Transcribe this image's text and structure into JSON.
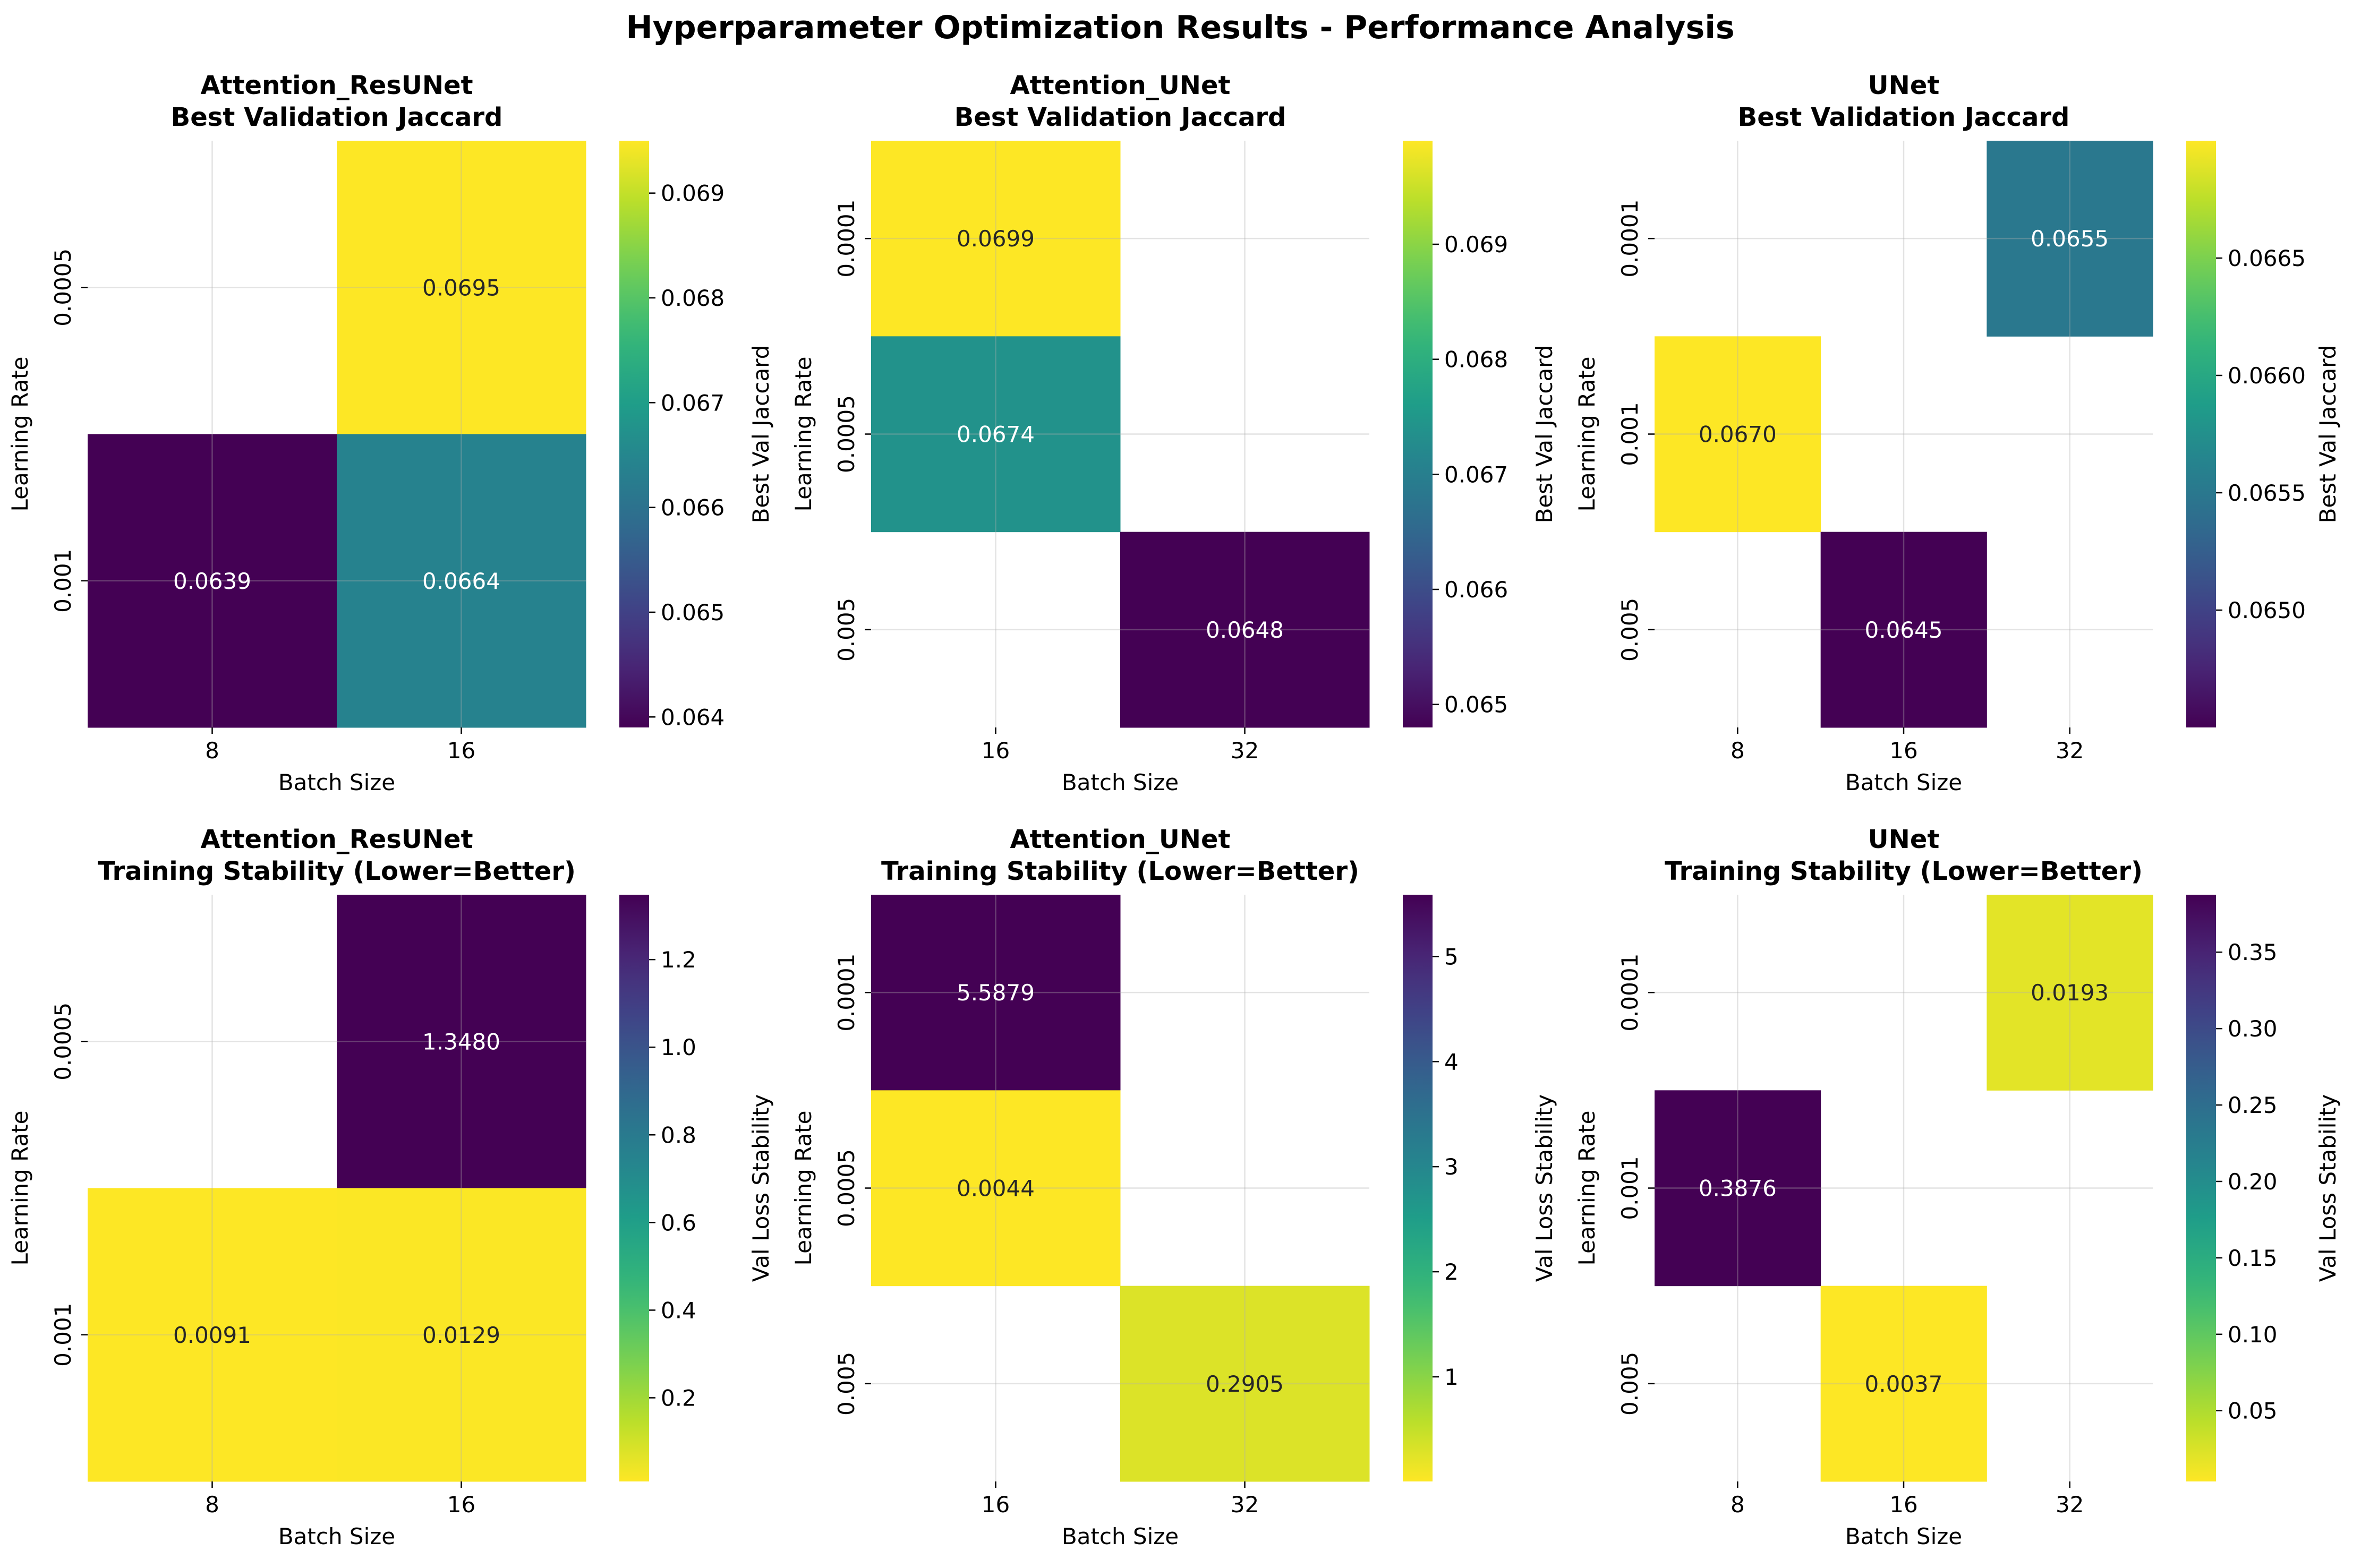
{
  "title": "Hyperparameter Optimization Results - Performance Analysis",
  "chart_data": [
    {
      "type": "heatmap",
      "model": "Attention_ResUNet",
      "subtitle": "Best Validation Jaccard",
      "xlabel": "Batch Size",
      "ylabel": "Learning Rate",
      "x_categories": [
        "8",
        "16"
      ],
      "y_categories": [
        "0.0005",
        "0.001"
      ],
      "cells": [
        [
          null,
          0.0695
        ],
        [
          0.0639,
          0.0664
        ]
      ],
      "cell_labels": [
        [
          null,
          "0.0695"
        ],
        [
          "0.0639",
          "0.0664"
        ]
      ],
      "colormap": "viridis",
      "colorbar_label": "Best Val Jaccard",
      "colorbar_range": [
        0.0639,
        0.0695
      ],
      "colorbar_ticks": [
        "0.064",
        "0.065",
        "0.066",
        "0.067",
        "0.068",
        "0.069"
      ],
      "colorbar_tick_values": [
        0.064,
        0.065,
        0.066,
        0.067,
        0.068,
        0.069
      ],
      "reversed": false,
      "grid": true
    },
    {
      "type": "heatmap",
      "model": "Attention_UNet",
      "subtitle": "Best Validation Jaccard",
      "xlabel": "Batch Size",
      "ylabel": "Learning Rate",
      "x_categories": [
        "16",
        "32"
      ],
      "y_categories": [
        "0.0001",
        "0.0005",
        "0.005"
      ],
      "cells": [
        [
          0.0699,
          null
        ],
        [
          0.0674,
          null
        ],
        [
          null,
          0.0648
        ]
      ],
      "cell_labels": [
        [
          "0.0699",
          null
        ],
        [
          "0.0674",
          null
        ],
        [
          null,
          "0.0648"
        ]
      ],
      "colormap": "viridis",
      "colorbar_label": "Best Val Jaccard",
      "colorbar_range": [
        0.0648,
        0.0699
      ],
      "colorbar_ticks": [
        "0.065",
        "0.066",
        "0.067",
        "0.068",
        "0.069"
      ],
      "colorbar_tick_values": [
        0.065,
        0.066,
        0.067,
        0.068,
        0.069
      ],
      "reversed": false,
      "grid": true
    },
    {
      "type": "heatmap",
      "model": "UNet",
      "subtitle": "Best Validation Jaccard",
      "xlabel": "Batch Size",
      "ylabel": "Learning Rate",
      "x_categories": [
        "8",
        "16",
        "32"
      ],
      "y_categories": [
        "0.0001",
        "0.001",
        "0.005"
      ],
      "cells": [
        [
          null,
          null,
          0.0655
        ],
        [
          0.067,
          null,
          null
        ],
        [
          null,
          0.0645,
          null
        ]
      ],
      "cell_labels": [
        [
          null,
          null,
          "0.0655"
        ],
        [
          "0.0670",
          null,
          null
        ],
        [
          null,
          "0.0645",
          null
        ]
      ],
      "colormap": "viridis",
      "colorbar_label": "Best Val Jaccard",
      "colorbar_range": [
        0.0645,
        0.067
      ],
      "colorbar_ticks": [
        "0.0650",
        "0.0655",
        "0.0660",
        "0.0665"
      ],
      "colorbar_tick_values": [
        0.065,
        0.0655,
        0.066,
        0.0665
      ],
      "reversed": false,
      "grid": true
    },
    {
      "type": "heatmap",
      "model": "Attention_ResUNet",
      "subtitle": "Training Stability (Lower=Better)",
      "xlabel": "Batch Size",
      "ylabel": "Learning Rate",
      "x_categories": [
        "8",
        "16"
      ],
      "y_categories": [
        "0.0005",
        "0.001"
      ],
      "cells": [
        [
          null,
          1.348
        ],
        [
          0.0091,
          0.0129
        ]
      ],
      "cell_labels": [
        [
          null,
          "1.3480"
        ],
        [
          "0.0091",
          "0.0129"
        ]
      ],
      "colormap": "viridis_r",
      "colorbar_label": "Val Loss Stability",
      "colorbar_range": [
        0.0091,
        1.348
      ],
      "colorbar_ticks": [
        "0.2",
        "0.4",
        "0.6",
        "0.8",
        "1.0",
        "1.2"
      ],
      "colorbar_tick_values": [
        0.2,
        0.4,
        0.6,
        0.8,
        1.0,
        1.2
      ],
      "reversed": true,
      "grid": true
    },
    {
      "type": "heatmap",
      "model": "Attention_UNet",
      "subtitle": "Training Stability (Lower=Better)",
      "xlabel": "Batch Size",
      "ylabel": "Learning Rate",
      "x_categories": [
        "16",
        "32"
      ],
      "y_categories": [
        "0.0001",
        "0.0005",
        "0.005"
      ],
      "cells": [
        [
          5.5879,
          null
        ],
        [
          0.0044,
          null
        ],
        [
          null,
          0.2905
        ]
      ],
      "cell_labels": [
        [
          "5.5879",
          null
        ],
        [
          "0.0044",
          null
        ],
        [
          null,
          "0.2905"
        ]
      ],
      "colormap": "viridis_r",
      "colorbar_label": "Val Loss Stability",
      "colorbar_range": [
        0.0044,
        5.5879
      ],
      "colorbar_ticks": [
        "1",
        "2",
        "3",
        "4",
        "5"
      ],
      "colorbar_tick_values": [
        1,
        2,
        3,
        4,
        5
      ],
      "reversed": true,
      "grid": true
    },
    {
      "type": "heatmap",
      "model": "UNet",
      "subtitle": "Training Stability (Lower=Better)",
      "xlabel": "Batch Size",
      "ylabel": "Learning Rate",
      "x_categories": [
        "8",
        "16",
        "32"
      ],
      "y_categories": [
        "0.0001",
        "0.001",
        "0.005"
      ],
      "cells": [
        [
          null,
          null,
          0.0193
        ],
        [
          0.3876,
          null,
          null
        ],
        [
          null,
          0.0037,
          null
        ]
      ],
      "cell_labels": [
        [
          null,
          null,
          "0.0193"
        ],
        [
          "0.3876",
          null,
          null
        ],
        [
          null,
          "0.0037",
          null
        ]
      ],
      "colormap": "viridis_r",
      "colorbar_label": "Val Loss Stability",
      "colorbar_range": [
        0.0037,
        0.3876
      ],
      "colorbar_ticks": [
        "0.05",
        "0.10",
        "0.15",
        "0.20",
        "0.25",
        "0.30",
        "0.35"
      ],
      "colorbar_tick_values": [
        0.05,
        0.1,
        0.15,
        0.2,
        0.25,
        0.3,
        0.35
      ],
      "reversed": true,
      "grid": true
    }
  ]
}
